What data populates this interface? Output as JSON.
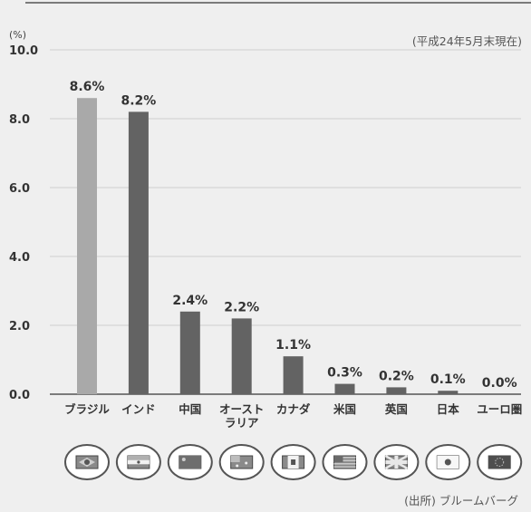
{
  "header_note": "(平成24年5月末現在)",
  "source_note": "(出所) ブルームバーグ",
  "chart_data": {
    "type": "bar",
    "ylabel": "(%)",
    "ylim": [
      0,
      10
    ],
    "yticks": [
      "0.0",
      "2.0",
      "4.0",
      "6.0",
      "8.0",
      "10.0"
    ],
    "grid": true,
    "categories": [
      [
        "ブラジル"
      ],
      [
        "インド"
      ],
      [
        "中国"
      ],
      [
        "オースト",
        "ラリア"
      ],
      [
        "カナダ"
      ],
      [
        "米国"
      ],
      [
        "英国"
      ],
      [
        "日本"
      ],
      [
        "ユーロ圏"
      ]
    ],
    "values": [
      8.6,
      8.2,
      2.4,
      2.2,
      1.1,
      0.3,
      0.2,
      0.1,
      0.0
    ],
    "value_labels": [
      "8.6%",
      "8.2%",
      "2.4%",
      "2.2%",
      "1.1%",
      "0.3%",
      "0.2%",
      "0.1%",
      "0.0%"
    ],
    "colors": {
      "first_bar": "#a9a9a9",
      "bar": "#636363",
      "grid": "#cfcfcf",
      "axis": "#555555"
    },
    "flag_icons": [
      "brazil-flag-icon",
      "india-flag-icon",
      "china-flag-icon",
      "australia-flag-icon",
      "canada-flag-icon",
      "usa-flag-icon",
      "uk-flag-icon",
      "japan-flag-icon",
      "eu-flag-icon"
    ]
  }
}
